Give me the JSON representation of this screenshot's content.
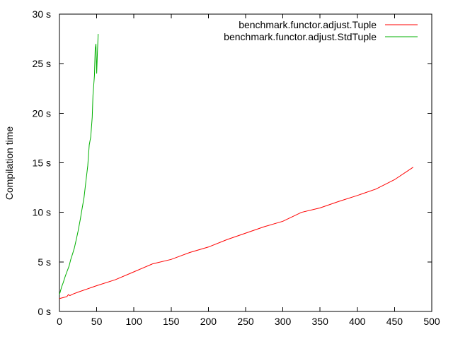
{
  "chart_data": {
    "type": "line",
    "title": "",
    "xlabel": "",
    "ylabel": "Compilation time",
    "xlim": [
      0,
      500
    ],
    "ylim": [
      0,
      30
    ],
    "x_ticks": [
      0,
      50,
      100,
      150,
      200,
      250,
      300,
      350,
      400,
      450,
      500
    ],
    "y_ticks": [
      0,
      5,
      10,
      15,
      20,
      25,
      30
    ],
    "y_tick_suffix": " s",
    "grid": false,
    "legend_position": "top-right",
    "series": [
      {
        "name": "benchmark.functor.adjust.Tuple",
        "color": "#ff0000",
        "points": [
          [
            0,
            1.3
          ],
          [
            5,
            1.4
          ],
          [
            10,
            1.5
          ],
          [
            12,
            1.7
          ],
          [
            14,
            1.6
          ],
          [
            18,
            1.75
          ],
          [
            25,
            1.95
          ],
          [
            50,
            2.6
          ],
          [
            75,
            3.2
          ],
          [
            100,
            4.0
          ],
          [
            125,
            4.8
          ],
          [
            150,
            5.25
          ],
          [
            175,
            5.95
          ],
          [
            200,
            6.5
          ],
          [
            225,
            7.25
          ],
          [
            250,
            7.9
          ],
          [
            275,
            8.55
          ],
          [
            300,
            9.1
          ],
          [
            325,
            10.0
          ],
          [
            350,
            10.45
          ],
          [
            375,
            11.1
          ],
          [
            400,
            11.7
          ],
          [
            425,
            12.35
          ],
          [
            450,
            13.3
          ],
          [
            475,
            14.55
          ]
        ]
      },
      {
        "name": "benchmark.functor.adjust.StdTuple",
        "color": "#00b000",
        "points": [
          [
            0,
            1.7
          ],
          [
            3,
            2.5
          ],
          [
            5,
            2.9
          ],
          [
            8,
            3.6
          ],
          [
            10,
            4.0
          ],
          [
            13,
            4.6
          ],
          [
            15,
            5.2
          ],
          [
            18,
            5.9
          ],
          [
            20,
            6.4
          ],
          [
            23,
            7.4
          ],
          [
            25,
            8.1
          ],
          [
            28,
            9.3
          ],
          [
            30,
            10.2
          ],
          [
            33,
            11.5
          ],
          [
            35,
            12.8
          ],
          [
            38,
            14.7
          ],
          [
            40,
            16.8
          ],
          [
            42,
            17.6
          ],
          [
            44,
            19.6
          ],
          [
            45,
            21.8
          ],
          [
            47,
            23.8
          ],
          [
            48,
            26.5
          ],
          [
            49,
            27.0
          ],
          [
            50,
            24.0
          ],
          [
            51,
            26.2
          ],
          [
            52,
            28.0
          ]
        ]
      }
    ]
  }
}
